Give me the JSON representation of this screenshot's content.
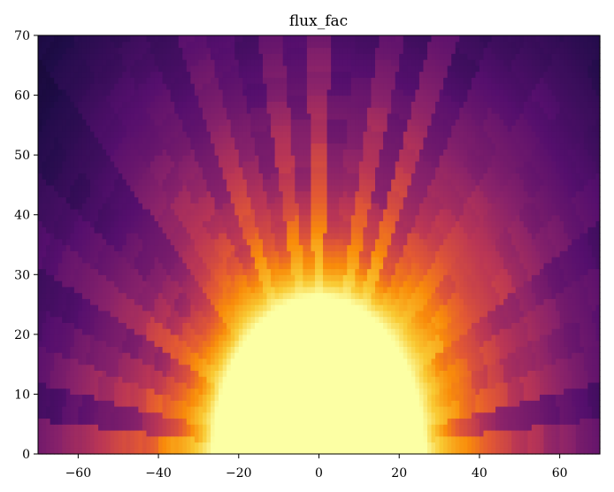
{
  "chart_data": {
    "type": "heatmap",
    "title": "flux_fac",
    "xlabel": "",
    "ylabel": "",
    "xlim": [
      -70,
      70
    ],
    "ylim": [
      0,
      70
    ],
    "x_ticks": [
      -60,
      -40,
      -20,
      0,
      20,
      40,
      60
    ],
    "x_tick_labels": [
      "−60",
      "−40",
      "−20",
      "0",
      "20",
      "40",
      "60"
    ],
    "y_ticks": [
      0,
      10,
      20,
      30,
      40,
      50,
      60,
      70
    ],
    "y_tick_labels": [
      "0",
      "10",
      "20",
      "30",
      "40",
      "50",
      "60",
      "70"
    ],
    "colormap": "inferno",
    "grid": false,
    "colorbar": false,
    "field_description": "bright saturated core (radius about 28) near the origin, decaying outward with radial streaks",
    "sample_grid": {
      "x": [
        -60,
        -40,
        -20,
        0,
        20,
        40,
        60
      ],
      "y": [
        5,
        20,
        35,
        50,
        65
      ],
      "values_normalized": [
        [
          0.25,
          0.55,
          1.0,
          1.0,
          1.0,
          0.55,
          0.25
        ],
        [
          0.22,
          0.45,
          0.98,
          1.0,
          0.98,
          0.45,
          0.22
        ],
        [
          0.15,
          0.33,
          0.62,
          0.72,
          0.62,
          0.33,
          0.15
        ],
        [
          0.12,
          0.22,
          0.36,
          0.42,
          0.36,
          0.22,
          0.12
        ],
        [
          0.08,
          0.15,
          0.27,
          0.32,
          0.27,
          0.15,
          0.08
        ]
      ]
    }
  }
}
